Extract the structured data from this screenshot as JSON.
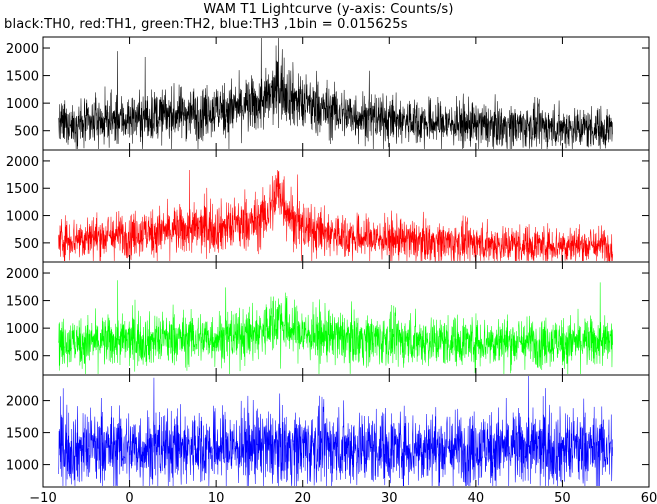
{
  "chart_data": {
    "type": "line",
    "title": "WAM T1 Lightcurve (y-axis: Counts/s)",
    "subtitle": "black:TH0, red:TH1, green:TH2, blue:TH3 ,1bin = 0.015625s",
    "xlim": [
      -10,
      60
    ],
    "x_ticks": [
      -10,
      0,
      10,
      20,
      30,
      40,
      50,
      60
    ],
    "x_range_data": [
      -8.2,
      55.8
    ],
    "grid": false,
    "panels": [
      {
        "name": "TH0",
        "color": "#000000",
        "ylim": [
          150,
          2200
        ],
        "y_ticks": [
          500,
          1000,
          1500,
          2000
        ],
        "mean_profile": {
          "x": [
            -8,
            -4,
            0,
            5,
            10,
            14,
            15.5,
            16.5,
            17,
            17.5,
            18,
            19,
            20,
            22,
            25,
            30,
            35,
            40,
            45,
            50,
            55.8
          ],
          "y": [
            600,
            660,
            720,
            800,
            870,
            950,
            1020,
            1150,
            1250,
            1300,
            1250,
            1100,
            980,
            900,
            800,
            700,
            650,
            600,
            580,
            560,
            540
          ]
        }
      },
      {
        "name": "TH1",
        "color": "#ff0000",
        "ylim": [
          150,
          2200
        ],
        "y_ticks": [
          500,
          1000,
          1500,
          2000
        ],
        "mean_profile": {
          "x": [
            -8,
            -4,
            0,
            5,
            10,
            14,
            15.5,
            16.5,
            17,
            17.5,
            18,
            19,
            20,
            22,
            25,
            30,
            35,
            40,
            45,
            50,
            55.8
          ],
          "y": [
            560,
            610,
            660,
            720,
            780,
            850,
            950,
            1200,
            1450,
            1400,
            1200,
            900,
            780,
            700,
            620,
            560,
            520,
            490,
            470,
            460,
            450
          ]
        }
      },
      {
        "name": "TH2",
        "color": "#00ff00",
        "ylim": [
          150,
          2200
        ],
        "y_ticks": [
          500,
          1000,
          1500,
          2000
        ],
        "mean_profile": {
          "x": [
            -8,
            -4,
            0,
            5,
            10,
            14,
            15.5,
            16.5,
            17,
            17.5,
            18,
            19,
            20,
            22,
            25,
            30,
            35,
            40,
            45,
            50,
            55.8
          ],
          "y": [
            730,
            750,
            770,
            800,
            830,
            880,
            950,
            1100,
            1200,
            1150,
            1050,
            950,
            900,
            860,
            820,
            790,
            770,
            760,
            750,
            745,
            740
          ]
        }
      },
      {
        "name": "TH3",
        "color": "#0000ff",
        "ylim": [
          650,
          2400
        ],
        "y_ticks": [
          1000,
          1500,
          2000
        ],
        "mean_profile": {
          "x": [
            -8,
            0,
            10,
            20,
            30,
            40,
            50,
            55.8
          ],
          "y": [
            1250,
            1260,
            1270,
            1275,
            1265,
            1255,
            1250,
            1245
          ]
        }
      }
    ]
  },
  "tick_labels": {
    "x": [
      "−10",
      "0",
      "10",
      "20",
      "30",
      "40",
      "50",
      "60"
    ],
    "panel0_y": [
      "500",
      "1000",
      "1500",
      "2000"
    ],
    "panel1_y": [
      "500",
      "1000",
      "1500",
      "2000"
    ],
    "panel2_y": [
      "500",
      "1000",
      "1500",
      "2000"
    ],
    "panel3_y": [
      "1000",
      "1500",
      "2000"
    ]
  }
}
